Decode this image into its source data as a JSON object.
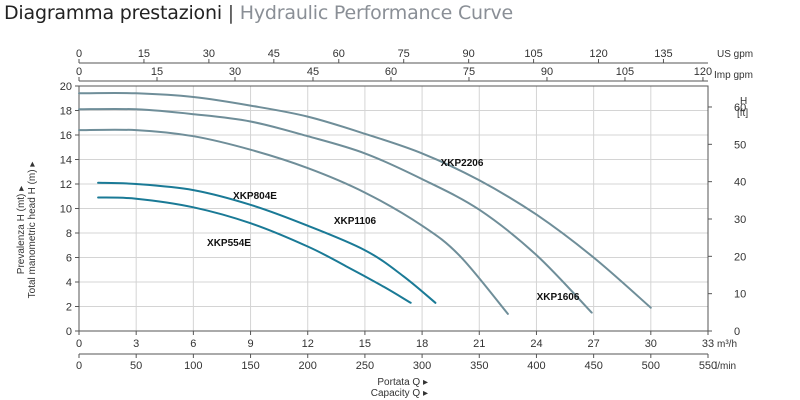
{
  "title": {
    "italian": "Diagramma prestazioni",
    "separator": "|",
    "english": "Hydraulic Performance Curve"
  },
  "colors": {
    "curve_dark": "#6f8e99",
    "curve_teal": "#1a7a96",
    "grid": "#d4d4d4",
    "axis": "#555555",
    "title_grey": "#8a8f96"
  },
  "chart_data": {
    "type": "line",
    "xlabel": "Portata Q ▸",
    "xlabel2": "Capacity Q ▸",
    "ylabel": "Prevalenza H (mt) ▸",
    "ylabel2": "Total manometric head H (m) ▸",
    "grid": true,
    "x_axes": {
      "m3h": {
        "unit": "m³/h",
        "ticks": [
          0,
          3,
          6,
          9,
          12,
          15,
          18,
          21,
          24,
          27,
          30,
          33
        ],
        "range": [
          0,
          33
        ]
      },
      "lmin": {
        "unit": "l/min",
        "ticks": [
          0,
          50,
          100,
          150,
          200,
          250,
          300,
          350,
          400,
          450,
          500,
          550
        ],
        "range": [
          0,
          550
        ]
      },
      "usgpm": {
        "unit": "US gpm",
        "ticks": [
          0,
          15,
          30,
          45,
          60,
          75,
          90,
          105,
          120,
          135
        ],
        "range": [
          0,
          145.29
        ]
      },
      "impgpm": {
        "unit": "Imp gpm",
        "ticks": [
          0,
          15,
          30,
          45,
          60,
          75,
          90,
          105,
          120
        ],
        "range": [
          0,
          120.97
        ]
      }
    },
    "y_axes": {
      "m": {
        "ticks": [
          0,
          2,
          4,
          6,
          8,
          10,
          12,
          14,
          16,
          18,
          20
        ],
        "range": [
          0,
          20
        ]
      },
      "ft": {
        "unit_top": "H",
        "unit_bottom": "[ft]",
        "ticks": [
          0,
          10,
          20,
          30,
          40,
          50,
          60
        ],
        "range": [
          0,
          65.62
        ]
      }
    },
    "series": [
      {
        "name": "XKP554E",
        "color": "teal",
        "x": [
          1,
          3,
          6,
          9,
          12,
          14,
          16,
          17.4
        ],
        "y": [
          10.9,
          10.8,
          10.1,
          8.8,
          6.9,
          5.3,
          3.6,
          2.3
        ]
      },
      {
        "name": "XKP804E",
        "color": "teal",
        "x": [
          1,
          3,
          6,
          9,
          12,
          15,
          17,
          18.7
        ],
        "y": [
          12.1,
          12.0,
          11.5,
          10.3,
          8.6,
          6.6,
          4.5,
          2.3
        ]
      },
      {
        "name": "XKP1106",
        "color": "dark",
        "x": [
          0,
          3,
          6,
          9,
          12,
          15,
          18,
          20,
          22.5
        ],
        "y": [
          16.4,
          16.4,
          15.9,
          14.8,
          13.3,
          11.3,
          8.6,
          6.1,
          1.4
        ]
      },
      {
        "name": "XKP1606",
        "color": "dark",
        "x": [
          0,
          3,
          6,
          9,
          12,
          15,
          18,
          21,
          24,
          26.9
        ],
        "y": [
          18.1,
          18.1,
          17.7,
          17.1,
          15.9,
          14.5,
          12.4,
          9.9,
          6.2,
          1.5
        ]
      },
      {
        "name": "XKP2206",
        "color": "dark",
        "x": [
          0,
          3,
          6,
          9,
          12,
          15,
          18,
          21,
          24,
          27,
          30
        ],
        "y": [
          19.4,
          19.4,
          19.1,
          18.4,
          17.5,
          16.1,
          14.5,
          12.3,
          9.5,
          6.0,
          1.9
        ]
      }
    ]
  }
}
